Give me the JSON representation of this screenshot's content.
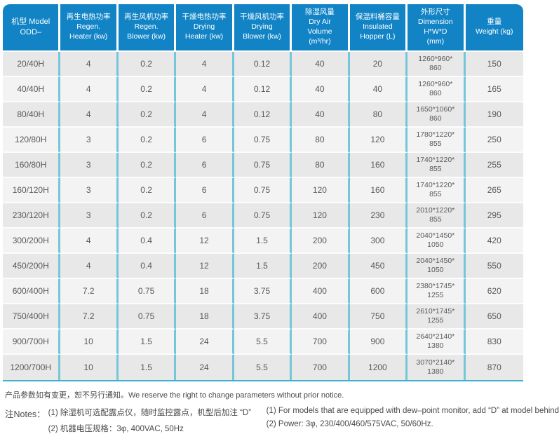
{
  "colors": {
    "header_bg": "#1284c6",
    "border_cyan": "#74c6da",
    "bottom_line": "#3fb3ce",
    "row_odd": "#e8e8e8",
    "row_even": "#f3f3f3"
  },
  "table": {
    "columns": [
      {
        "id": "model",
        "lines": [
          "机型 Model",
          "ODD–"
        ]
      },
      {
        "id": "regen_heater",
        "lines": [
          "再生电热功率",
          "Regen.",
          "Heater (kw)"
        ]
      },
      {
        "id": "regen_blower",
        "lines": [
          "再生风机功率",
          "Regen.",
          "Blower (kw)"
        ]
      },
      {
        "id": "drying_heater",
        "lines": [
          "干燥电热功率",
          "Drying",
          "Heater (kw)"
        ]
      },
      {
        "id": "drying_blower",
        "lines": [
          "干燥风机功率",
          "Drying",
          "Blower (kw)"
        ]
      },
      {
        "id": "dry_air",
        "lines": [
          "除湿风量",
          "Dry Air",
          "Volume",
          "(m³/hr)"
        ]
      },
      {
        "id": "hopper",
        "lines": [
          "保温料桶容量",
          "Insulated",
          "Hopper (L)"
        ]
      },
      {
        "id": "dimension",
        "lines": [
          "外形尺寸",
          "Dimension",
          "H*W*D",
          "(mm)"
        ]
      },
      {
        "id": "weight",
        "lines": [
          "重量",
          "Weight (kg)"
        ]
      }
    ],
    "rows": [
      {
        "model": "20/40H",
        "regen_heater": "4",
        "regen_blower": "0.2",
        "drying_heater": "4",
        "drying_blower": "0.12",
        "dry_air": "40",
        "hopper": "20",
        "dimension": [
          "1260*960*",
          "860"
        ],
        "weight": "150"
      },
      {
        "model": "40/40H",
        "regen_heater": "4",
        "regen_blower": "0.2",
        "drying_heater": "4",
        "drying_blower": "0.12",
        "dry_air": "40",
        "hopper": "40",
        "dimension": [
          "1260*960*",
          "860"
        ],
        "weight": "165"
      },
      {
        "model": "80/40H",
        "regen_heater": "4",
        "regen_blower": "0.2",
        "drying_heater": "4",
        "drying_blower": "0.12",
        "dry_air": "40",
        "hopper": "80",
        "dimension": [
          "1650*1060*",
          "860"
        ],
        "weight": "190"
      },
      {
        "model": "120/80H",
        "regen_heater": "3",
        "regen_blower": "0.2",
        "drying_heater": "6",
        "drying_blower": "0.75",
        "dry_air": "80",
        "hopper": "120",
        "dimension": [
          "1780*1220*",
          "855"
        ],
        "weight": "250"
      },
      {
        "model": "160/80H",
        "regen_heater": "3",
        "regen_blower": "0.2",
        "drying_heater": "6",
        "drying_blower": "0.75",
        "dry_air": "80",
        "hopper": "160",
        "dimension": [
          "1740*1220*",
          "855"
        ],
        "weight": "255"
      },
      {
        "model": "160/120H",
        "regen_heater": "3",
        "regen_blower": "0.2",
        "drying_heater": "6",
        "drying_blower": "0.75",
        "dry_air": "120",
        "hopper": "160",
        "dimension": [
          "1740*1220*",
          "855"
        ],
        "weight": "265"
      },
      {
        "model": "230/120H",
        "regen_heater": "3",
        "regen_blower": "0.2",
        "drying_heater": "6",
        "drying_blower": "0.75",
        "dry_air": "120",
        "hopper": "230",
        "dimension": [
          "2010*1220*",
          "855"
        ],
        "weight": "295"
      },
      {
        "model": "300/200H",
        "regen_heater": "4",
        "regen_blower": "0.4",
        "drying_heater": "12",
        "drying_blower": "1.5",
        "dry_air": "200",
        "hopper": "300",
        "dimension": [
          "2040*1450*",
          "1050"
        ],
        "weight": "420"
      },
      {
        "model": "450/200H",
        "regen_heater": "4",
        "regen_blower": "0.4",
        "drying_heater": "12",
        "drying_blower": "1.5",
        "dry_air": "200",
        "hopper": "450",
        "dimension": [
          "2040*1450*",
          "1050"
        ],
        "weight": "550"
      },
      {
        "model": "600/400H",
        "regen_heater": "7.2",
        "regen_blower": "0.75",
        "drying_heater": "18",
        "drying_blower": "3.75",
        "dry_air": "400",
        "hopper": "600",
        "dimension": [
          "2380*1745*",
          "1255"
        ],
        "weight": "620"
      },
      {
        "model": "750/400H",
        "regen_heater": "7.2",
        "regen_blower": "0.75",
        "drying_heater": "18",
        "drying_blower": "3.75",
        "dry_air": "400",
        "hopper": "750",
        "dimension": [
          "2610*1745*",
          "1255"
        ],
        "weight": "650"
      },
      {
        "model": "900/700H",
        "regen_heater": "10",
        "regen_blower": "1.5",
        "drying_heater": "24",
        "drying_blower": "5.5",
        "dry_air": "700",
        "hopper": "900",
        "dimension": [
          "2640*2140*",
          "1380"
        ],
        "weight": "830"
      },
      {
        "model": "1200/700H",
        "regen_heater": "10",
        "regen_blower": "1.5",
        "drying_heater": "24",
        "drying_blower": "5.5",
        "dry_air": "700",
        "hopper": "1200",
        "dimension": [
          "3070*2140*",
          "1380"
        ],
        "weight": "870"
      }
    ]
  },
  "footer": {
    "disclaimer": "产品参数如有变更，恕不另行通知。We reserve the right to change parameters without prior notice.",
    "notes_label": "注Notes：",
    "notes_zh": [
      "(1) 除湿机可选配露点仪，随时监控露点，机型后加注 “D”",
      "(2) 机器电压规格：3φ, 400VAC, 50Hz"
    ],
    "notes_en": [
      "(1) For models that are equipped with dew–point monitor, add “D” at model behind",
      "(2) Power: 3φ, 230/400/460/575VAC, 50/60Hz."
    ]
  }
}
